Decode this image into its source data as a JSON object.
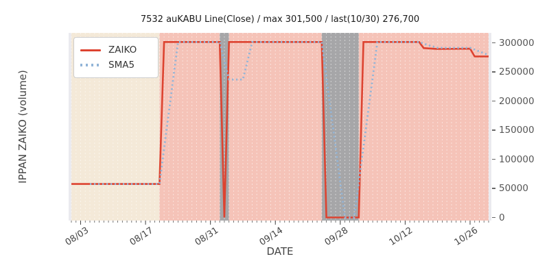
{
  "title": "7532 auKABU Line(Close) / max 301,500 / last(10/30) 276,700",
  "legend": {
    "items": [
      {
        "label": "ZAIKO",
        "style": "solid",
        "color": "#dd4330"
      },
      {
        "label": "SMA5",
        "style": "dotted",
        "color": "#92b5d8"
      }
    ]
  },
  "chart_data": {
    "type": "line",
    "title": "7532 auKABU Line(Close) / max 301,500 / last(10/30) 276,700",
    "xlabel": "DATE",
    "ylabel": "IPPAN ZAIKO (volume)",
    "x_range": [
      "08/01",
      "10/31"
    ],
    "x_tick_labels": [
      "08/03",
      "08/17",
      "08/31",
      "09/14",
      "09/28",
      "10/12",
      "10/26"
    ],
    "y_ticks": [
      0,
      50000,
      100000,
      150000,
      200000,
      250000,
      300000
    ],
    "ylim": [
      0,
      317000
    ],
    "grid": "vertical-daily-white-dashed",
    "legend_position": "upper left",
    "max_value": 301500,
    "last_value": 276700,
    "last_date": "10/30",
    "series": [
      {
        "name": "ZAIKO",
        "color": "#dd4330",
        "style": "solid",
        "points": [
          [
            "08/01",
            57500
          ],
          [
            "08/20",
            57500
          ],
          [
            "08/21",
            301500
          ],
          [
            "09/02",
            301500
          ],
          [
            "09/03",
            0
          ],
          [
            "09/04",
            301500
          ],
          [
            "09/24",
            301500
          ],
          [
            "09/25",
            0
          ],
          [
            "10/02",
            0
          ],
          [
            "10/03",
            301500
          ],
          [
            "10/15",
            301500
          ],
          [
            "10/16",
            291000
          ],
          [
            "10/19",
            289500
          ],
          [
            "10/26",
            290000
          ],
          [
            "10/27",
            276700
          ],
          [
            "10/30",
            276700
          ]
        ]
      },
      {
        "name": "SMA5",
        "color": "#92b5d8",
        "style": "dotted",
        "points": [
          [
            "08/05",
            57500
          ],
          [
            "08/20",
            57500
          ],
          [
            "08/24",
            301500
          ],
          [
            "09/02",
            301500
          ],
          [
            "09/04",
            237000
          ],
          [
            "09/07",
            237000
          ],
          [
            "09/09",
            301500
          ],
          [
            "09/24",
            301500
          ],
          [
            "09/29",
            0
          ],
          [
            "10/01",
            0
          ],
          [
            "10/06",
            301500
          ],
          [
            "10/15",
            301500
          ],
          [
            "10/17",
            296000
          ],
          [
            "10/19",
            291500
          ],
          [
            "10/26",
            291500
          ],
          [
            "10/30",
            279000
          ]
        ]
      }
    ],
    "background_spans": [
      {
        "from": "08/01",
        "to": "08/20",
        "color": "#f4e9d8",
        "name": "beige-span"
      },
      {
        "from": "08/20",
        "to": "09/02",
        "color": "#f5c3b8",
        "name": "pink-span"
      },
      {
        "from": "09/02",
        "to": "09/04",
        "color": "#a6a6a8",
        "name": "gray-span"
      },
      {
        "from": "09/04",
        "to": "09/24",
        "color": "#f5c3b8",
        "name": "pink-span"
      },
      {
        "from": "09/24",
        "to": "10/02",
        "color": "#a6a6a8",
        "name": "gray-span"
      },
      {
        "from": "10/02",
        "to": "10/30",
        "color": "#f5c3b8",
        "name": "pink-span"
      }
    ],
    "plot_bg_color": "#eaeaef"
  }
}
